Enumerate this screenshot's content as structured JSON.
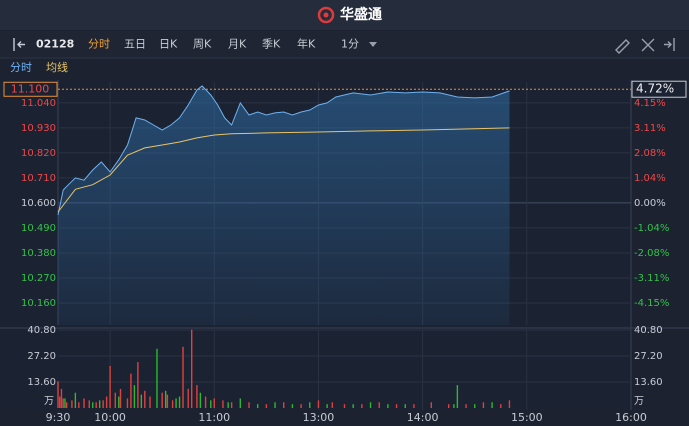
{
  "header": {
    "brand": "华盛通"
  },
  "toolbar": {
    "code": "02128",
    "tabs": [
      "分时",
      "五日",
      "日K",
      "周K",
      "月K",
      "季K",
      "年K",
      "1分"
    ]
  },
  "chart_data": [
    {
      "type": "line",
      "series": [
        {
          "name": "分时",
          "color": "#6fb1f0",
          "x": [
            0,
            3,
            6,
            10,
            15,
            20,
            25,
            30,
            35,
            40,
            45,
            50,
            55,
            60,
            65,
            70,
            75,
            80,
            83,
            88,
            92,
            96,
            100,
            105,
            110,
            115,
            120,
            125,
            130,
            135,
            140,
            145,
            150,
            155,
            160,
            170,
            180,
            190,
            200,
            210,
            220,
            230,
            240,
            250,
            260
          ],
          "values": [
            10.547,
            10.657,
            10.68,
            10.71,
            10.7,
            10.745,
            10.78,
            10.736,
            10.79,
            10.855,
            10.974,
            10.965,
            10.943,
            10.921,
            10.943,
            10.974,
            11.031,
            11.097,
            11.115,
            11.075,
            11.031,
            10.974,
            10.943,
            11.04,
            10.987,
            11.0,
            10.987,
            10.996,
            11.0,
            10.987,
            11.0,
            11.009,
            11.031,
            11.04,
            11.066,
            11.084,
            11.075,
            11.088,
            11.084,
            11.088,
            11.084,
            11.066,
            11.062,
            11.066,
            11.093
          ]
        },
        {
          "name": "均线",
          "color": "#e8c468",
          "x": [
            0,
            10,
            20,
            30,
            40,
            50,
            60,
            70,
            80,
            90,
            100,
            120,
            150,
            180,
            210,
            240,
            260
          ],
          "values": [
            10.56,
            10.66,
            10.68,
            10.723,
            10.81,
            10.842,
            10.855,
            10.868,
            10.886,
            10.899,
            10.904,
            10.908,
            10.912,
            10.917,
            10.921,
            10.926,
            10.93
          ]
        }
      ],
      "xlim": [
        0,
        330
      ],
      "xticks": [
        {
          "value": 0,
          "label": "9:30"
        },
        {
          "value": 30,
          "label": "10:00"
        },
        {
          "value": 90,
          "label": "11:00"
        },
        {
          "value": 150,
          "label": "13:00"
        },
        {
          "value": 210,
          "label": "14:00"
        },
        {
          "value": 270,
          "label": "15:00"
        },
        {
          "value": 330,
          "label": "16:00"
        }
      ],
      "ylim": [
        10.063,
        11.132
      ],
      "yticks": [
        {
          "value": 11.04,
          "label": "11.040"
        },
        {
          "value": 10.93,
          "label": "10.930"
        },
        {
          "value": 10.82,
          "label": "10.820"
        },
        {
          "value": 10.71,
          "label": "10.710"
        },
        {
          "value": 10.6,
          "label": "10.600"
        },
        {
          "value": 10.49,
          "label": "10.490"
        },
        {
          "value": 10.38,
          "label": "10.380"
        },
        {
          "value": 10.27,
          "label": "10.270"
        },
        {
          "value": 10.16,
          "label": "10.160"
        }
      ],
      "y2lim": [
        -5.07,
        5.02
      ],
      "y2ticks": [
        {
          "value": 4.15,
          "label": "4.15%"
        },
        {
          "value": 3.11,
          "label": "3.11%"
        },
        {
          "value": 2.08,
          "label": "2.08%"
        },
        {
          "value": 1.04,
          "label": "1.04%"
        },
        {
          "value": 0,
          "label": "0.00%"
        },
        {
          "value": -1.04,
          "label": "-1.04%"
        },
        {
          "value": -2.08,
          "label": "-2.08%"
        },
        {
          "value": -3.11,
          "label": "-3.11%"
        },
        {
          "value": -4.15,
          "label": "-4.15%"
        }
      ],
      "last_price": {
        "value": 11.1,
        "label": "11.100"
      },
      "last_change": {
        "value": 4.72,
        "label": "4.72%"
      },
      "grid": true
    },
    {
      "type": "bar",
      "unit": "万",
      "series": [
        {
          "color": "#e0413f",
          "x": [
            0,
            1,
            2,
            3,
            5,
            8,
            12,
            15,
            18,
            22,
            26,
            28,
            30,
            33,
            36,
            40,
            42,
            46,
            50,
            53,
            60,
            63,
            66,
            72,
            75,
            77,
            80,
            85,
            90,
            95,
            100,
            110,
            120,
            130,
            140,
            150,
            158,
            165,
            175,
            185,
            195,
            205,
            215,
            225,
            235,
            245,
            255,
            260
          ],
          "values": [
            14,
            6,
            10,
            5,
            3,
            4,
            3,
            5,
            4,
            3,
            4,
            6,
            22,
            8,
            10,
            5,
            18,
            24,
            9,
            6,
            8,
            7,
            4,
            32,
            10,
            41,
            12,
            6,
            5,
            4,
            3,
            3,
            2,
            3,
            2,
            4,
            3,
            2,
            2,
            3,
            2,
            2,
            3,
            2,
            2,
            3,
            2,
            4
          ]
        },
        {
          "color": "#2eb82e",
          "x": [
            4,
            10,
            20,
            24,
            35,
            44,
            48,
            57,
            62,
            68,
            70,
            82,
            88,
            98,
            105,
            115,
            125,
            135,
            145,
            155,
            170,
            180,
            190,
            200,
            228,
            230,
            240,
            250
          ],
          "values": [
            5,
            8,
            3,
            4,
            6,
            12,
            7,
            31,
            9,
            5,
            6,
            8,
            4,
            3,
            5,
            2,
            3,
            2,
            3,
            2,
            2,
            3,
            2,
            2,
            2,
            12,
            2,
            3
          ]
        }
      ],
      "xlim": [
        0,
        330
      ],
      "ylim": [
        0,
        40.8
      ],
      "yticks": [
        {
          "value": 40.8,
          "label": "40.80"
        },
        {
          "value": 27.2,
          "label": "27.20"
        },
        {
          "value": 13.6,
          "label": "13.60"
        }
      ],
      "grid": true
    }
  ]
}
